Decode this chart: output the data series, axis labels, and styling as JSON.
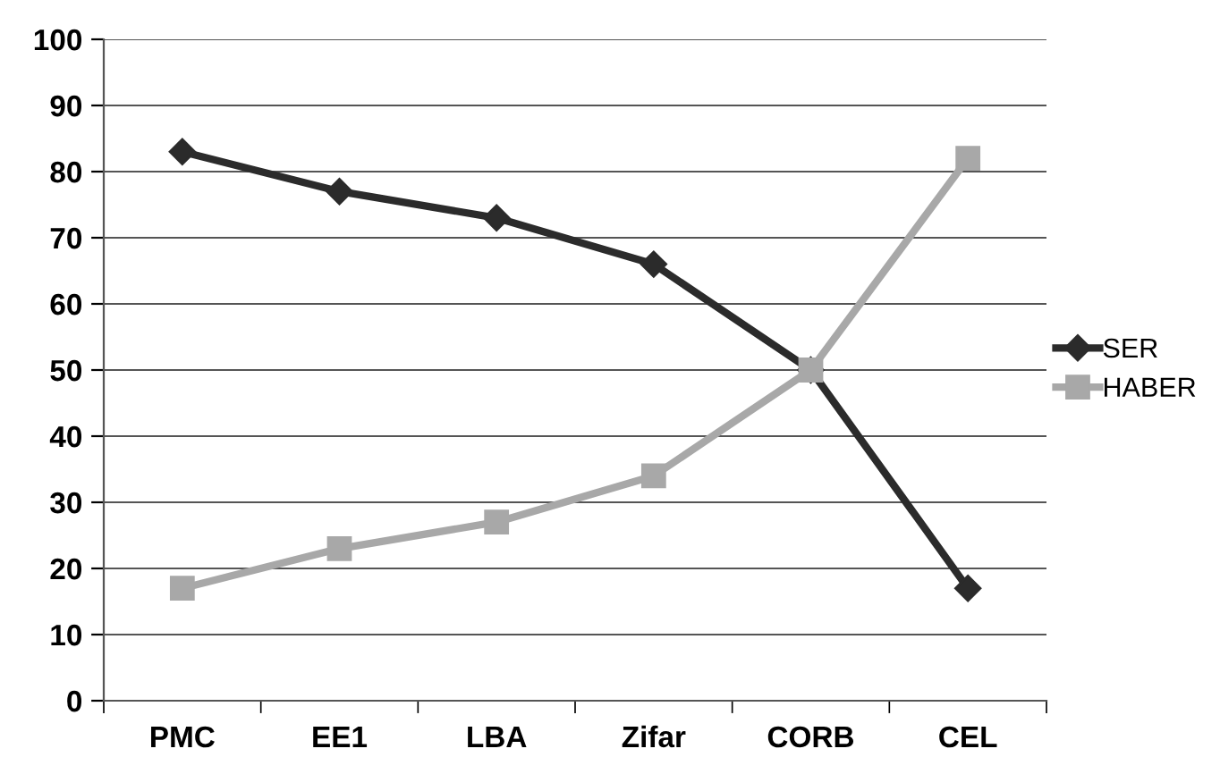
{
  "chart_data": {
    "type": "line",
    "categories": [
      "PMC",
      "EE1",
      "LBA",
      "Zifar",
      "CORB",
      "CEL"
    ],
    "series": [
      {
        "name": "SER",
        "color": "#2b2b2b",
        "marker": "diamond",
        "values": [
          83,
          77,
          73,
          66,
          50,
          17
        ]
      },
      {
        "name": "HABER",
        "color": "#a8a8a8",
        "marker": "square",
        "values": [
          17,
          23,
          27,
          34,
          50,
          82
        ]
      }
    ],
    "ylim": [
      0,
      100
    ],
    "yticks": [
      0,
      10,
      20,
      30,
      40,
      50,
      60,
      70,
      80,
      90,
      100
    ],
    "grid": "y",
    "legend": "right",
    "line_style": "solid"
  }
}
